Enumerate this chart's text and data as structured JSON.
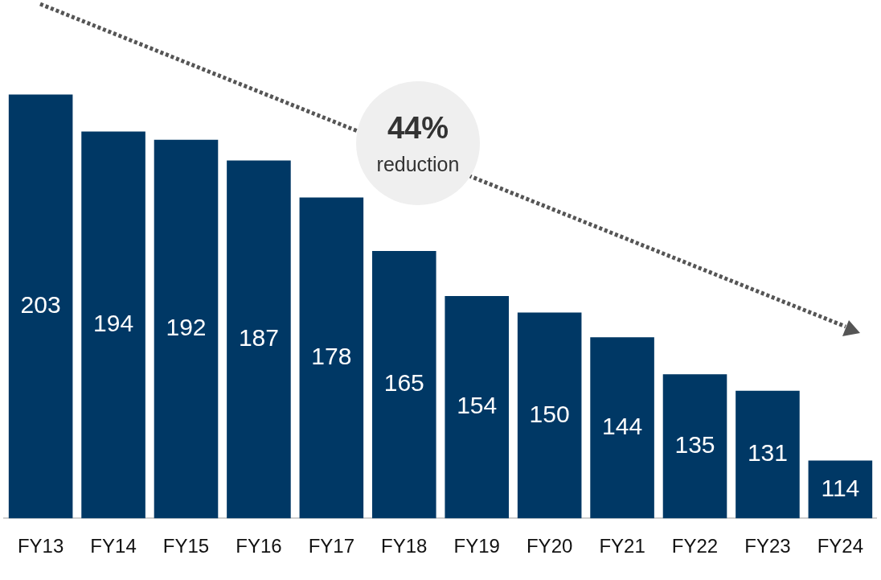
{
  "chart_data": {
    "type": "bar",
    "categories": [
      "FY13",
      "FY14",
      "FY15",
      "FY16",
      "FY17",
      "FY18",
      "FY19",
      "FY20",
      "FY21",
      "FY22",
      "FY23",
      "FY24"
    ],
    "values": [
      203,
      194,
      192,
      187,
      178,
      165,
      154,
      150,
      144,
      135,
      131,
      114
    ],
    "color": "#003865",
    "ylim": [
      100,
      226
    ],
    "data_labels": true,
    "grid": false,
    "legend": false,
    "annotations": [
      "44%",
      "reduction"
    ]
  }
}
